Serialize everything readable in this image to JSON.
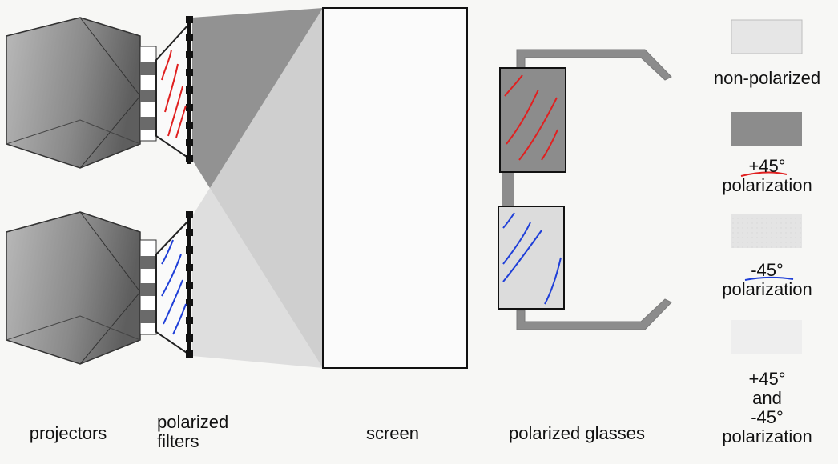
{
  "labels": {
    "projectors": "projectors",
    "filters_line1": "polarized",
    "filters_line2": "filters",
    "screen": "screen",
    "glasses": "polarized glasses"
  },
  "legend": {
    "non_polarized": "non-polarized",
    "plus45_value": "+45°",
    "plus45_word": "polarization",
    "minus45_value": "-45°",
    "minus45_word": "polarization",
    "both_line1": "+45°",
    "both_line2": "and",
    "both_line3": "-45°",
    "both_line4": "polarization"
  },
  "colors": {
    "plus45": "#8c8c8c",
    "minus45": "#d6d6d6",
    "non_polarized": "#e6e6e6",
    "red_ink": "#e02020",
    "blue_ink": "#1f3fd8"
  }
}
